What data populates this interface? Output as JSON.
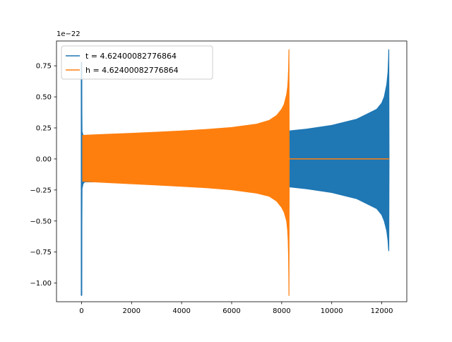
{
  "chart_data": {
    "type": "line",
    "title": "",
    "xlabel": "",
    "ylabel": "",
    "offset_text": "1e−22",
    "xlim": [
      -1000,
      13000
    ],
    "ylim": [
      -1.15,
      0.95
    ],
    "y_scale_factor": 1e-22,
    "x_ticks": [
      0,
      2000,
      4000,
      6000,
      8000,
      10000,
      12000
    ],
    "x_tick_labels": [
      "0",
      "2000",
      "4000",
      "6000",
      "8000",
      "10000",
      "12000"
    ],
    "y_ticks": [
      -1.0,
      -0.75,
      -0.5,
      -0.25,
      0.0,
      0.25,
      0.5,
      0.75
    ],
    "y_tick_labels": [
      "−1.00",
      "−0.75",
      "−0.50",
      "−0.25",
      "0.00",
      "0.25",
      "0.50",
      "0.75"
    ],
    "grid": false,
    "legend_position": "upper-left",
    "series": [
      {
        "name": "t = 4.62400082776864",
        "color": "#1f77b4",
        "envelope": {
          "x": [
            0,
            20,
            60,
            120,
            200,
            600,
            2000,
            4000,
            6000,
            8000,
            8290,
            9000,
            10000,
            11000,
            11800,
            12000,
            12100,
            12200,
            12250,
            12270,
            12280,
            12290
          ],
          "upper": [
            0.78,
            0.22,
            0.19,
            0.185,
            0.185,
            0.185,
            0.185,
            0.185,
            0.185,
            0.185,
            0.225,
            0.24,
            0.27,
            0.32,
            0.4,
            0.45,
            0.5,
            0.6,
            0.7,
            0.8,
            0.88,
            0.0
          ],
          "lower": [
            -1.1,
            -0.24,
            -0.2,
            -0.185,
            -0.185,
            -0.185,
            -0.185,
            -0.185,
            -0.185,
            -0.185,
            -0.225,
            -0.24,
            -0.27,
            -0.32,
            -0.4,
            -0.45,
            -0.5,
            -0.58,
            -0.66,
            -0.72,
            -0.74,
            0.0
          ]
        }
      },
      {
        "name": "h = 4.62400082776864",
        "color": "#ff7f0e",
        "envelope": {
          "x": [
            0,
            50,
            1000,
            2000,
            3000,
            4000,
            5000,
            6000,
            7000,
            7500,
            7800,
            8000,
            8100,
            8200,
            8240,
            8260,
            8275,
            8285,
            8290,
            8300,
            12290
          ],
          "upper": [
            0.19,
            0.19,
            0.198,
            0.206,
            0.215,
            0.225,
            0.237,
            0.253,
            0.28,
            0.31,
            0.35,
            0.4,
            0.44,
            0.52,
            0.58,
            0.64,
            0.72,
            0.82,
            0.88,
            0.0,
            0.0
          ],
          "lower": [
            -0.18,
            -0.18,
            -0.19,
            -0.2,
            -0.21,
            -0.22,
            -0.232,
            -0.248,
            -0.275,
            -0.3,
            -0.34,
            -0.39,
            -0.43,
            -0.5,
            -0.58,
            -0.66,
            -0.78,
            -0.95,
            -1.1,
            0.0,
            0.0
          ]
        }
      }
    ]
  }
}
